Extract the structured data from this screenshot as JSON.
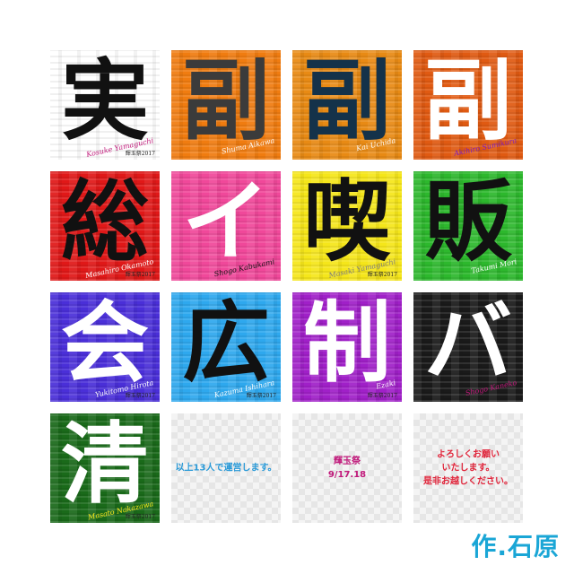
{
  "tiles": [
    {
      "kanji": "実",
      "name": "Kosuke Yamaguchi",
      "stamp": "輝玉祭2017",
      "bg": "#ffffff",
      "fg": "#111111",
      "sig": "#c0187a"
    },
    {
      "kanji": "副",
      "name": "Shuma Aikawa",
      "stamp": "",
      "bg": "#f07c10",
      "fg": "#3b3b3b",
      "sig": "#ffffff"
    },
    {
      "kanji": "副",
      "name": "Kai Uchida",
      "stamp": "",
      "bg": "#e88a14",
      "fg": "#14324a",
      "sig": "#ffffff"
    },
    {
      "kanji": "副",
      "name": "Akihiro Sumikura",
      "stamp": "",
      "bg": "#e05a12",
      "fg": "#ffffff",
      "sig": "#7c1cc0"
    },
    {
      "kanji": "総",
      "name": "Masahiro Okamoto",
      "stamp": "輝玉祭2017",
      "bg": "#e01818",
      "fg": "#111111",
      "sig": "#ffffff"
    },
    {
      "kanji": "イ",
      "name": "Shogo Kabukami",
      "stamp": "",
      "bg": "#f0489a",
      "fg": "#ffffff",
      "sig": "#111111"
    },
    {
      "kanji": "喫",
      "name": "Masaki Yamaguchi",
      "stamp": "輝玉祭2017",
      "bg": "#f5e61a",
      "fg": "#111111",
      "sig": "#7a7a7a"
    },
    {
      "kanji": "販",
      "name": "Takumi Mori",
      "stamp": "",
      "bg": "#2db82d",
      "fg": "#111111",
      "sig": "#ffffff"
    },
    {
      "kanji": "会",
      "name": "Yukitomo Hirota",
      "stamp": "輝玉祭2017",
      "bg": "#4a2fd8",
      "fg": "#ffffff",
      "sig": "#ffffff"
    },
    {
      "kanji": "広",
      "name": "Kazuma Ishihara",
      "stamp": "輝玉祭2017",
      "bg": "#2ea8ee",
      "fg": "#111111",
      "sig": "#ffffff"
    },
    {
      "kanji": "制",
      "name": "Ezaki",
      "stamp": "輝玉祭2017",
      "bg": "#a020c8",
      "fg": "#ffffff",
      "sig": "#ffffff"
    },
    {
      "kanji": "バ",
      "name": "Shogo Kaneko",
      "stamp": "",
      "bg": "#1a1a1a",
      "fg": "#ffffff",
      "sig": "#c0187a"
    },
    {
      "kanji": "清",
      "name": "Masato Nakazawa",
      "stamp": "輝玉祭2017",
      "bg": "#1a6a1a",
      "fg": "#ffffff",
      "sig": "#f5e61a"
    }
  ],
  "notes": [
    {
      "text": "以上13人で運営します。",
      "color": "#2a9ad8"
    },
    {
      "text": "輝玉祭\n9/17.18",
      "color": "#c0187a"
    },
    {
      "text": "よろしくお願い\nいたします。\n是非お越しください。",
      "color": "#e0243a"
    }
  ],
  "credit": {
    "text": "作.石原",
    "color": "#1aa6d6"
  }
}
